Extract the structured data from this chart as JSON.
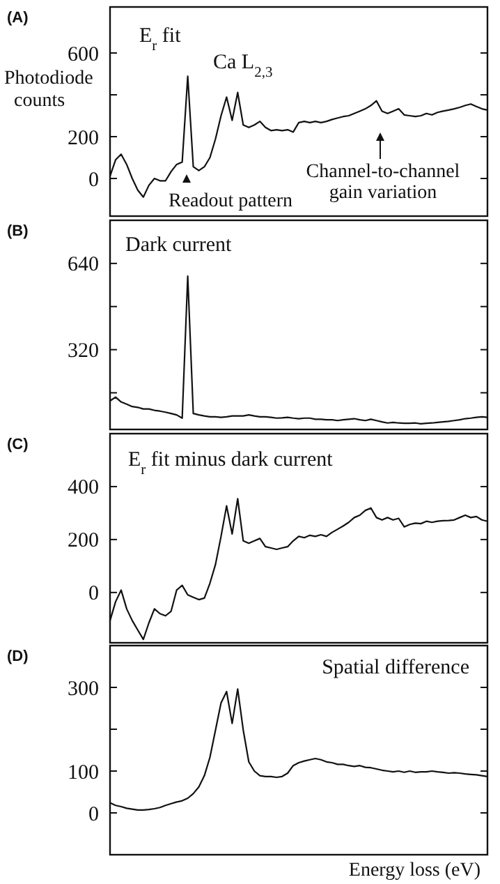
{
  "chart_data": [
    {
      "type": "line",
      "title": "(A)",
      "subtitle": "E$_{r}$ fit",
      "ylabel": "Photodiode counts",
      "annotations": [
        "Ca L$_{2,3}$",
        "Readout pattern",
        "Channel-to-channel gain variation"
      ],
      "categories": [
        null,
        null,
        null,
        null,
        null,
        null,
        null,
        null,
        null,
        null,
        null,
        null,
        null,
        null,
        null,
        null,
        null,
        null,
        null,
        null,
        null,
        null,
        null,
        null,
        null,
        null,
        null,
        null,
        null,
        null,
        null,
        null,
        null,
        null,
        null,
        null,
        null,
        null,
        null,
        null,
        null,
        null,
        null,
        null,
        null,
        null,
        null,
        null,
        null,
        null,
        null,
        null,
        null,
        null,
        null,
        null,
        null,
        null,
        null,
        null,
        null,
        null,
        null,
        null,
        null,
        null,
        null,
        null,
        null
      ],
      "ylim": [
        -180,
        820
      ],
      "yticks": [
        0,
        200,
        {
          "value": 400,
          "label": null
        },
        600
      ],
      "tick_labels": "y",
      "series": [
        {
          "color": "#111111",
          "values": [
            11,
            89,
            116,
            67,
            0,
            -56,
            -89,
            -33,
            0,
            -11,
            -11,
            33,
            67,
            78,
            489,
            56,
            38,
            56,
            100,
            189,
            300,
            389,
            278,
            411,
            256,
            244,
            256,
            273,
            244,
            229,
            233,
            229,
            233,
            222,
            267,
            273,
            267,
            273,
            267,
            273,
            282,
            289,
            296,
            300,
            311,
            322,
            333,
            349,
            371,
            322,
            311,
            322,
            333,
            304,
            300,
            296,
            300,
            311,
            304,
            316,
            322,
            327,
            333,
            340,
            349,
            356,
            344,
            333,
            327
          ]
        }
      ]
    },
    {
      "type": "line",
      "title": "(B)",
      "subtitle": "Dark current",
      "categories": [
        null,
        null,
        null,
        null,
        null,
        null,
        null,
        null,
        null,
        null,
        null,
        null,
        null,
        null,
        null,
        null,
        null,
        null,
        null,
        null,
        null,
        null,
        null,
        null,
        null,
        null,
        null,
        null,
        null,
        null,
        null,
        null,
        null,
        null,
        null,
        null,
        null,
        null,
        null,
        null,
        null,
        null,
        null,
        null,
        null,
        null,
        null,
        null,
        null,
        null,
        null,
        null,
        null,
        null,
        null,
        null,
        null,
        null,
        null,
        null,
        null,
        null,
        null,
        null,
        null,
        null,
        null,
        null,
        null
      ],
      "ylim": [
        24,
        800
      ],
      "yticks": [
        {
          "value": 160,
          "label": null
        },
        320,
        {
          "value": 480,
          "label": null
        },
        640
      ],
      "tick_labels": "y",
      "series": [
        {
          "color": "#111111",
          "values": [
            130,
            144,
            126,
            118,
            109,
            106,
            100,
            100,
            95,
            92,
            88,
            83,
            78,
            66,
            593,
            83,
            78,
            74,
            71,
            71,
            69,
            71,
            74,
            74,
            74,
            78,
            74,
            71,
            71,
            69,
            66,
            67,
            69,
            66,
            64,
            66,
            66,
            62,
            62,
            60,
            60,
            57,
            60,
            62,
            64,
            60,
            57,
            62,
            57,
            52,
            48,
            50,
            48,
            47,
            47,
            48,
            45,
            47,
            48,
            50,
            52,
            54,
            57,
            60,
            64,
            66,
            69,
            71,
            69
          ]
        }
      ]
    },
    {
      "type": "line",
      "title": "(C)",
      "subtitle": "E$_{r}$ fit minus dark current",
      "categories": [
        null,
        null,
        null,
        null,
        null,
        null,
        null,
        null,
        null,
        null,
        null,
        null,
        null,
        null,
        null,
        null,
        null,
        null,
        null,
        null,
        null,
        null,
        null,
        null,
        null,
        null,
        null,
        null,
        null,
        null,
        null,
        null,
        null,
        null,
        null,
        null,
        null,
        null,
        null,
        null,
        null,
        null,
        null,
        null,
        null,
        null,
        null,
        null,
        null,
        null,
        null,
        null,
        null,
        null,
        null,
        null,
        null,
        null,
        null,
        null,
        null,
        null,
        null,
        null,
        null,
        null,
        null,
        null,
        null
      ],
      "ylim": [
        -190,
        600
      ],
      "yticks": [
        0,
        200,
        400
      ],
      "tick_labels": "y",
      "series": [
        {
          "color": "#111111",
          "values": [
            -106,
            -35,
            9,
            -62,
            -106,
            -142,
            -177,
            -115,
            -62,
            -80,
            -88,
            -71,
            9,
            27,
            -9,
            -18,
            -27,
            -21,
            35,
            106,
            212,
            327,
            221,
            354,
            195,
            186,
            195,
            204,
            173,
            168,
            163,
            168,
            173,
            195,
            212,
            207,
            216,
            212,
            218,
            212,
            227,
            239,
            251,
            265,
            283,
            292,
            310,
            319,
            283,
            274,
            283,
            274,
            280,
            248,
            257,
            262,
            260,
            269,
            265,
            269,
            271,
            272,
            274,
            283,
            292,
            283,
            287,
            274,
            269
          ]
        }
      ]
    },
    {
      "type": "line",
      "title": "(D)",
      "subtitle": "Spatial difference",
      "xlabel": "Energy loss (eV)",
      "categories": [
        null,
        null,
        null,
        null,
        null,
        null,
        null,
        null,
        null,
        null,
        null,
        null,
        null,
        null,
        null,
        null,
        null,
        null,
        null,
        null,
        null,
        null,
        null,
        null,
        null,
        null,
        null,
        null,
        null,
        null,
        null,
        null,
        null,
        null,
        null,
        null,
        null,
        null,
        null,
        null,
        null,
        null,
        null,
        null,
        null,
        null,
        null,
        null,
        null,
        null,
        null,
        null,
        null,
        null,
        null,
        null,
        null,
        null,
        null,
        null,
        null,
        null,
        null,
        null,
        null,
        null,
        null,
        null,
        null
      ],
      "ylim": [
        -100,
        400
      ],
      "yticks": [
        0,
        100,
        {
          "value": 200,
          "label": null
        },
        300
      ],
      "tick_labels": "y",
      "series": [
        {
          "color": "#111111",
          "values": [
            24,
            18,
            15,
            11,
            9,
            7,
            7,
            8,
            10,
            13,
            18,
            22,
            26,
            29,
            35,
            46,
            62,
            89,
            133,
            198,
            263,
            290,
            214,
            296,
            198,
            122,
            100,
            89,
            87,
            87,
            85,
            87,
            95,
            113,
            120,
            124,
            127,
            130,
            127,
            122,
            120,
            116,
            116,
            113,
            111,
            113,
            109,
            108,
            105,
            102,
            100,
            98,
            100,
            97,
            100,
            97,
            98,
            98,
            100,
            98,
            97,
            95,
            96,
            95,
            93,
            92,
            91,
            89,
            87
          ]
        }
      ]
    }
  ]
}
